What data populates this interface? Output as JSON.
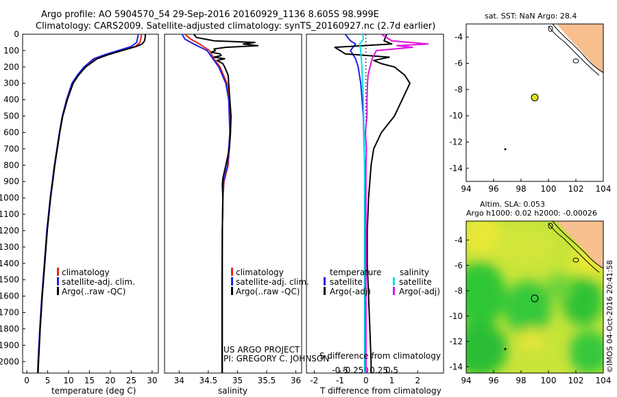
{
  "header": {
    "line1": "Argo profile: AO 5904570_54 29-Sep-2016 20160929_1136 8.605S 98.999E",
    "line2": "Climatology: CARS2009. Satellite-adjusted climatology: synTS_20160927.nc (2.7d earlier)"
  },
  "colors": {
    "climatology": "#e8231f",
    "satellite": "#1f1fe0",
    "argo": "#000000",
    "sat_sal": "#00e0e8",
    "argo_sal": "#e010e0",
    "land": "#f8bf8f",
    "float": "#d8e020"
  },
  "credits": {
    "project": "US ARGO PROJECT",
    "pi": "PI: GREGORY C. JOHNSON",
    "imos": "©IMOS 04-Oct-2016 20:41:58"
  },
  "chart_data": [
    {
      "type": "line",
      "name": "temperature",
      "xlabel": "temperature (deg C)",
      "ylabel": "",
      "xlim": [
        -1,
        31.5
      ],
      "ylim": [
        2070,
        0
      ],
      "y_reversed": true,
      "xticks": [
        0,
        5,
        10,
        15,
        20,
        25,
        30
      ],
      "yticks": [
        0,
        100,
        200,
        300,
        400,
        500,
        600,
        700,
        800,
        900,
        1000,
        1100,
        1200,
        1300,
        1400,
        1500,
        1600,
        1700,
        1800,
        1900,
        2000
      ],
      "legend": [
        "climatology",
        "satellite-adj. clim.",
        "Argo(..raw -QC)"
      ],
      "series": [
        {
          "name": "climatology",
          "depth": [
            0,
            50,
            75,
            100,
            125,
            150,
            200,
            250,
            300,
            400,
            500,
            600,
            700,
            800,
            900,
            1000,
            1200,
            1400,
            1600,
            1800,
            2000,
            2070
          ],
          "values": [
            27.5,
            27.1,
            26.0,
            22.5,
            19.2,
            16.5,
            14.0,
            12.3,
            11.0,
            9.6,
            8.6,
            7.9,
            7.3,
            6.7,
            6.2,
            5.7,
            4.9,
            4.3,
            3.7,
            3.2,
            2.8,
            2.7
          ]
        },
        {
          "name": "satellite-adj. clim.",
          "depth": [
            0,
            50,
            75,
            100,
            125,
            150,
            200,
            250,
            300,
            400,
            500,
            600,
            700,
            800,
            900,
            1000,
            1200,
            1400,
            1600,
            1800,
            2000,
            2070
          ],
          "values": [
            26.7,
            26.3,
            25.0,
            21.8,
            18.6,
            16.0,
            13.7,
            12.1,
            10.8,
            9.5,
            8.5,
            7.8,
            7.2,
            6.6,
            6.1,
            5.6,
            4.8,
            4.2,
            3.6,
            3.1,
            2.7,
            2.6
          ]
        },
        {
          "name": "Argo(..raw -QC)",
          "depth": [
            0,
            10,
            40,
            60,
            75,
            100,
            125,
            150,
            200,
            250,
            300,
            400,
            500,
            600,
            700,
            800,
            900,
            1000,
            1200,
            1400,
            1600,
            1800,
            2000,
            2070
          ],
          "values": [
            28.3,
            28.4,
            28.2,
            27.6,
            26.2,
            22.8,
            19.5,
            16.8,
            14.1,
            12.4,
            11.1,
            9.7,
            8.6,
            7.9,
            7.3,
            6.7,
            6.2,
            5.7,
            4.9,
            4.3,
            3.7,
            3.2,
            2.8,
            2.7
          ]
        }
      ]
    },
    {
      "type": "line",
      "name": "salinity",
      "xlabel": "salinity",
      "xlim": [
        33.75,
        36.1
      ],
      "ylim": [
        2070,
        0
      ],
      "y_reversed": true,
      "xticks": [
        34,
        34.5,
        35,
        35.5,
        36
      ],
      "legend": [
        "climatology",
        "satellite-adj. clim.",
        "Argo(..raw -QC)"
      ],
      "series": [
        {
          "name": "climatology",
          "depth": [
            0,
            30,
            60,
            100,
            150,
            200,
            300,
            400,
            600,
            800,
            900,
            1000,
            1200,
            1500,
            1800,
            2070
          ],
          "values": [
            34.1,
            34.2,
            34.35,
            34.52,
            34.6,
            34.7,
            34.82,
            34.86,
            34.88,
            34.84,
            34.77,
            34.75,
            34.74,
            34.735,
            34.735,
            34.735
          ]
        },
        {
          "name": "satellite-adj. clim.",
          "depth": [
            0,
            30,
            60,
            100,
            150,
            200,
            300,
            400,
            600,
            800,
            900,
            1000,
            1200,
            1500,
            1800,
            2070
          ],
          "values": [
            34.05,
            34.1,
            34.25,
            34.48,
            34.58,
            34.68,
            34.8,
            34.85,
            34.87,
            34.83,
            34.76,
            34.75,
            34.74,
            34.735,
            34.735,
            34.735
          ]
        },
        {
          "name": "Argo(..raw -QC)",
          "depth": [
            0,
            20,
            40,
            50,
            60,
            70,
            80,
            90,
            100,
            110,
            120,
            130,
            140,
            150,
            160,
            170,
            180,
            200,
            250,
            300,
            400,
            500,
            600,
            700,
            800,
            880,
            920,
            1000,
            1200,
            1500,
            1800,
            2070
          ],
          "values": [
            34.25,
            34.3,
            34.6,
            35.3,
            35.1,
            35.35,
            34.8,
            34.6,
            34.62,
            34.55,
            34.7,
            34.72,
            34.6,
            34.78,
            34.65,
            34.7,
            34.75,
            34.78,
            34.84,
            34.85,
            34.87,
            34.89,
            34.88,
            34.86,
            34.8,
            34.75,
            34.74,
            34.75,
            34.74,
            34.74,
            34.74,
            34.74
          ]
        }
      ]
    },
    {
      "type": "line",
      "name": "difference",
      "xlabel": "T difference from climatology",
      "xlabel2": "S difference from climatology",
      "xlim": [
        -2.3,
        3.0
      ],
      "ylim": [
        2070,
        0
      ],
      "y_reversed": true,
      "xticks_T": [
        -2,
        -1,
        0,
        1,
        2
      ],
      "xticks_S": [
        -0.5,
        -0.25,
        0,
        0.25,
        0.5
      ],
      "legend_temperature": {
        "title": "temperature",
        "items": [
          "satellite",
          "Argo(-adj)"
        ]
      },
      "legend_salinity": {
        "title": "salinity",
        "items": [
          "satellite",
          "Argo(-adj)"
        ]
      },
      "series": [
        {
          "name": "T satellite",
          "depth": [
            0,
            40,
            60,
            80,
            100,
            150,
            200,
            300,
            500,
            800,
            1200,
            1600,
            2070
          ],
          "values": [
            -0.8,
            -0.6,
            -0.4,
            -0.5,
            -0.6,
            -0.4,
            -0.3,
            -0.2,
            -0.1,
            -0.05,
            -0.05,
            -0.05,
            -0.05
          ]
        },
        {
          "name": "T Argo(-adj)",
          "depth": [
            0,
            40,
            60,
            80,
            100,
            120,
            140,
            160,
            180,
            200,
            250,
            300,
            400,
            500,
            600,
            700,
            800,
            900,
            1000,
            1200,
            1400,
            1600,
            1800,
            2000,
            2070
          ],
          "values": [
            0.8,
            0.7,
            1.0,
            -1.2,
            -1.0,
            -0.8,
            0.9,
            0.3,
            0.6,
            1.1,
            1.5,
            1.7,
            1.4,
            1.1,
            0.6,
            0.3,
            0.2,
            0.15,
            0.1,
            0.05,
            0.05,
            0.1,
            0.15,
            0.2,
            0.2
          ]
        },
        {
          "name": "S satellite",
          "depth": [
            0,
            30,
            60,
            100,
            200,
            400,
            700,
            1000,
            1500,
            2070
          ],
          "values": [
            -0.06,
            -0.05,
            -0.12,
            -0.1,
            -0.08,
            -0.05,
            -0.03,
            -0.02,
            -0.02,
            -0.02
          ]
        },
        {
          "name": "S Argo(-adj)",
          "depth": [
            0,
            40,
            60,
            70,
            80,
            100,
            150,
            200,
            250,
            300,
            400,
            500,
            600,
            700,
            800,
            900,
            1000,
            1200,
            1600,
            2070
          ],
          "values": [
            0.3,
            0.5,
            1.2,
            0.6,
            0.9,
            0.2,
            0.12,
            0.08,
            0.04,
            0.03,
            0.02,
            0.02,
            -0.01,
            0.01,
            0.0,
            0.0,
            0.0,
            0.0,
            0.0,
            0.0
          ]
        }
      ]
    },
    {
      "type": "map",
      "name": "sst_map",
      "title": "sat. SST: NaN Argo: 28.4",
      "xlim": [
        94,
        104
      ],
      "ylim": [
        -15,
        -3
      ],
      "xticks": [
        94,
        96,
        98,
        100,
        102,
        104
      ],
      "yticks": [
        -4,
        -6,
        -8,
        -10,
        -12,
        -14
      ],
      "float_position": [
        98.999,
        -8.605
      ]
    },
    {
      "type": "heatmap",
      "name": "sla_map",
      "title": "Altim. SLA: 0.053",
      "subtitle": "Argo h1000: 0.02 h2000: -0.00026",
      "xlim": [
        94,
        104
      ],
      "ylim": [
        -14.5,
        -2.5
      ],
      "xticks": [
        94,
        96,
        98,
        100,
        102,
        104
      ],
      "yticks": [
        -4,
        -6,
        -8,
        -10,
        -12,
        -14
      ],
      "float_position": [
        98.999,
        -8.605
      ]
    }
  ]
}
